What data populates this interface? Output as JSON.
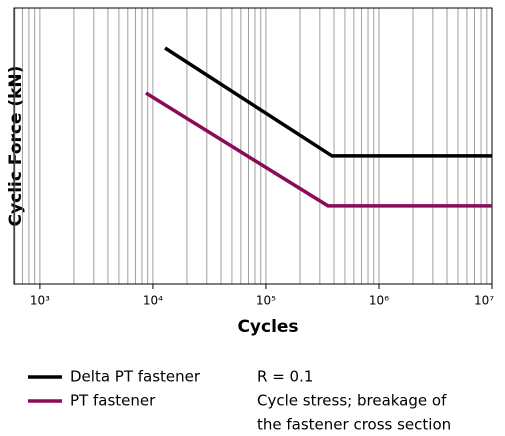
{
  "chart_data": {
    "type": "line",
    "xlabel": "Cycles",
    "ylabel": "Cyclic Force (kN)",
    "xscale": "log",
    "xlim": [
      590,
      10000000
    ],
    "xticks": [
      {
        "value": 1000,
        "label": "10³"
      },
      {
        "value": 10000,
        "label": "10⁴"
      },
      {
        "value": 100000,
        "label": "10⁵"
      },
      {
        "value": 1000000,
        "label": "10⁶"
      },
      {
        "value": 10000000,
        "label": "10⁷"
      }
    ],
    "ylim": [
      0,
      100
    ],
    "grid": true,
    "series": [
      {
        "name": "Delta PT fastener",
        "color": "#000000",
        "x": [
          12800,
          384000,
          10000000
        ],
        "values": [
          85.5,
          46.4,
          46.4
        ]
      },
      {
        "name": "PT fastener",
        "color": "#8b0a5a",
        "x": [
          8670,
          354000,
          10000000
        ],
        "values": [
          69.2,
          28.3,
          28.3
        ]
      }
    ],
    "annotations": [
      "R = 0.1",
      "Cycle stress; breakage of",
      "the fastener cross section"
    ]
  }
}
